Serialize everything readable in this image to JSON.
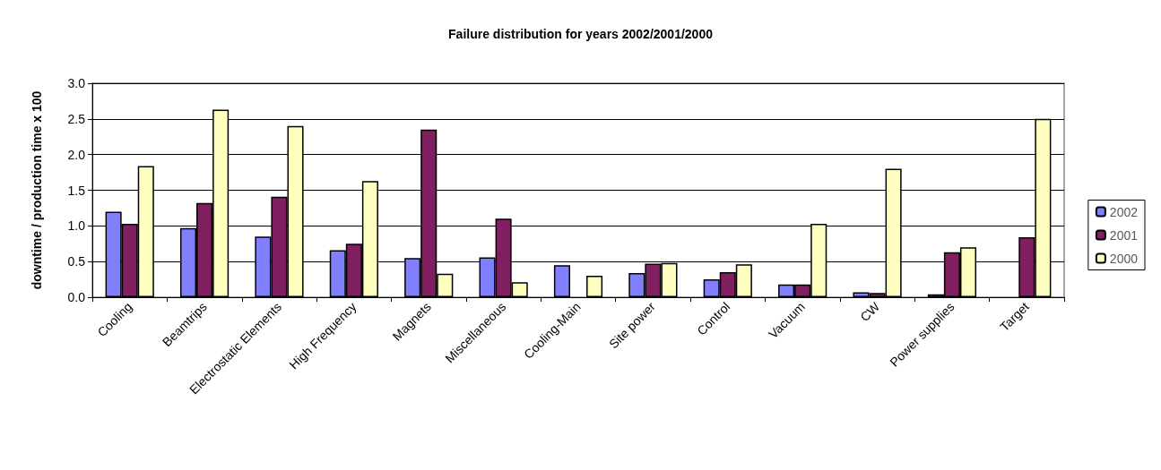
{
  "chart_data": {
    "type": "bar",
    "title": "Failure distribution for years 2002/2001/2000",
    "ylabel": "downtime / production time x 100",
    "categories": [
      "Cooling",
      "Beamtrips",
      "Electrostatic Elements",
      "High Frequency",
      "Magnets",
      "Miscellaneous",
      "Cooling-Main",
      "Site power",
      "Control",
      "Vacuum",
      "CW",
      "Power supplies",
      "Target"
    ],
    "series": [
      {
        "name": "2002",
        "color": "#8080ff",
        "values": [
          1.2,
          0.97,
          0.85,
          0.66,
          0.55,
          0.56,
          0.45,
          0.34,
          0.25,
          0.18,
          0.07,
          0.04,
          null
        ]
      },
      {
        "name": "2001",
        "color": "#802060",
        "values": [
          1.03,
          1.32,
          1.41,
          0.75,
          2.35,
          1.1,
          null,
          0.47,
          0.35,
          0.18,
          0.06,
          0.63,
          0.84
        ]
      },
      {
        "name": "2000",
        "color": "#ffffc0",
        "values": [
          1.84,
          2.63,
          2.4,
          1.63,
          0.33,
          0.21,
          0.3,
          0.48,
          0.46,
          1.03,
          1.8,
          0.7,
          2.5
        ]
      }
    ],
    "ylim": [
      0,
      3
    ],
    "yticks": [
      {
        "value": 0,
        "label": "0.0"
      },
      0.5,
      {
        "value": 1,
        "label": "1.0"
      },
      1.5,
      {
        "value": 2,
        "label": "2.0"
      },
      2.5,
      {
        "value": 3,
        "label": "3.0"
      }
    ],
    "grid": "y",
    "legend": "right"
  }
}
